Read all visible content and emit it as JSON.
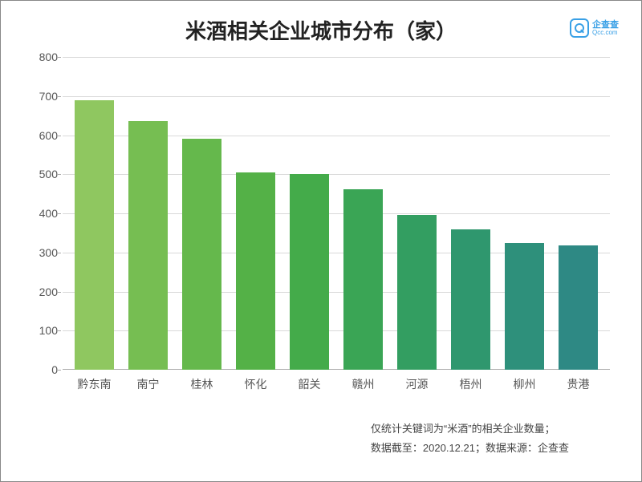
{
  "title": "米酒相关企业城市分布（家）",
  "logo": {
    "cn": "企查查",
    "en": "Qcc.com"
  },
  "chart": {
    "type": "bar",
    "ylim": [
      0,
      800
    ],
    "ytick_step": 100,
    "grid_color": "#d9d9d9",
    "axis_color": "#aaaaaa",
    "label_color": "#555555",
    "label_fontsize": 14,
    "bar_width": 0.72,
    "background_color": "#ffffff",
    "categories": [
      "黔东南",
      "南宁",
      "桂林",
      "怀化",
      "韶关",
      "赣州",
      "河源",
      "梧州",
      "柳州",
      "贵港"
    ],
    "values": [
      690,
      635,
      590,
      505,
      500,
      462,
      395,
      360,
      325,
      318
    ],
    "bar_colors": [
      "#8fc760",
      "#76be52",
      "#65b84c",
      "#54b147",
      "#44ab4a",
      "#3aa555",
      "#339e61",
      "#2f976e",
      "#2e907b",
      "#2e8984"
    ]
  },
  "footnotes": {
    "line1": "仅统计关键词为“米酒”的相关企业数量；",
    "line2": "数据截至：2020.12.21；数据来源：企查查"
  }
}
